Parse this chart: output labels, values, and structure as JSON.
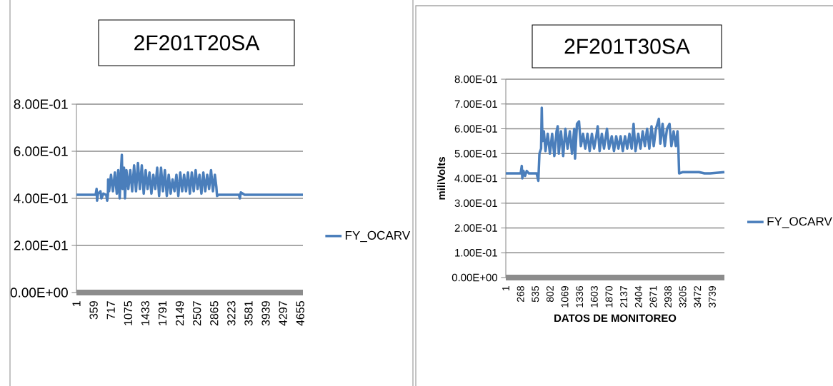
{
  "chart_data": [
    {
      "type": "line",
      "title": "2F201T20SA",
      "grid": "y",
      "legend": "right",
      "marker": "none",
      "line_style": "solid",
      "xlim": [
        1,
        4711
      ],
      "xticks": [
        1,
        359,
        717,
        1075,
        1433,
        1791,
        2149,
        2507,
        2865,
        3223,
        3581,
        3939,
        4297,
        4655
      ],
      "ylim": [
        0,
        0.8
      ],
      "yticks": [
        {
          "value": 0,
          "label": "0.00E+00"
        },
        {
          "value": 0.2,
          "label": "2.00E-01"
        },
        {
          "value": 0.4,
          "label": "4.00E-01"
        },
        {
          "value": 0.6,
          "label": "6.00E-01"
        },
        {
          "value": 0.8,
          "label": "8.00E-01"
        }
      ],
      "x": [
        1,
        200,
        400,
        420,
        430,
        450,
        500,
        520,
        560,
        620,
        640,
        655,
        660,
        680,
        720,
        760,
        800,
        840,
        870,
        900,
        930,
        945,
        960,
        990,
        1010,
        1040,
        1080,
        1120,
        1160,
        1200,
        1240,
        1280,
        1320,
        1360,
        1400,
        1440,
        1480,
        1520,
        1560,
        1600,
        1640,
        1680,
        1720,
        1760,
        1800,
        1840,
        1880,
        1920,
        1960,
        2000,
        2040,
        2080,
        2120,
        2160,
        2200,
        2240,
        2280,
        2320,
        2360,
        2400,
        2440,
        2480,
        2520,
        2560,
        2600,
        2640,
        2680,
        2720,
        2760,
        2800,
        2840,
        2880,
        2910,
        2925,
        2960,
        3100,
        3380,
        3400,
        3420,
        3500,
        4711
      ],
      "series": [
        {
          "name": "FY_OCARV",
          "color": "#4a7ebb",
          "values": [
            0.415,
            0.415,
            0.415,
            0.44,
            0.39,
            0.42,
            0.43,
            0.4,
            0.42,
            0.415,
            0.39,
            0.415,
            0.48,
            0.43,
            0.5,
            0.43,
            0.51,
            0.42,
            0.52,
            0.4,
            0.53,
            0.585,
            0.44,
            0.53,
            0.4,
            0.52,
            0.44,
            0.52,
            0.43,
            0.54,
            0.43,
            0.55,
            0.44,
            0.54,
            0.42,
            0.52,
            0.44,
            0.51,
            0.42,
            0.5,
            0.44,
            0.53,
            0.41,
            0.53,
            0.43,
            0.52,
            0.41,
            0.5,
            0.42,
            0.48,
            0.43,
            0.5,
            0.41,
            0.51,
            0.43,
            0.5,
            0.43,
            0.51,
            0.42,
            0.51,
            0.43,
            0.52,
            0.44,
            0.5,
            0.42,
            0.51,
            0.43,
            0.5,
            0.44,
            0.52,
            0.43,
            0.5,
            0.45,
            0.41,
            0.415,
            0.415,
            0.415,
            0.4,
            0.425,
            0.415,
            0.415
          ]
        }
      ]
    },
    {
      "type": "line",
      "title": "2F201T30SA",
      "xlabel": "DATOS DE MONITOREO",
      "ylabel": "miliVolts",
      "grid": "y",
      "legend": "right",
      "marker": "none",
      "line_style": "solid",
      "xlim": [
        1,
        3960
      ],
      "xticks": [
        1,
        268,
        535,
        802,
        1069,
        1336,
        1603,
        1870,
        2137,
        2404,
        2671,
        2938,
        3205,
        3472,
        3739
      ],
      "ylim": [
        0,
        0.8
      ],
      "yticks": [
        {
          "value": 0,
          "label": "0.00E+00"
        },
        {
          "value": 0.1,
          "label": "1.00E-01"
        },
        {
          "value": 0.2,
          "label": "2.00E-01"
        },
        {
          "value": 0.3,
          "label": "3.00E-01"
        },
        {
          "value": 0.4,
          "label": "4.00E-01"
        },
        {
          "value": 0.5,
          "label": "5.00E-01"
        },
        {
          "value": 0.6,
          "label": "6.00E-01"
        },
        {
          "value": 0.7,
          "label": "7.00E-01"
        },
        {
          "value": 0.8,
          "label": "8.00E-01"
        }
      ],
      "x": [
        1,
        100,
        270,
        290,
        300,
        320,
        350,
        380,
        420,
        560,
        590,
        610,
        640,
        652,
        665,
        690,
        720,
        760,
        800,
        840,
        880,
        920,
        941,
        960,
        1000,
        1040,
        1080,
        1120,
        1160,
        1200,
        1240,
        1255,
        1290,
        1327,
        1360,
        1400,
        1440,
        1480,
        1520,
        1560,
        1600,
        1640,
        1665,
        1700,
        1740,
        1780,
        1833,
        1870,
        1920,
        1960,
        2000,
        2040,
        2080,
        2120,
        2160,
        2200,
        2240,
        2280,
        2315,
        2350,
        2400,
        2440,
        2480,
        2520,
        2560,
        2600,
        2640,
        2680,
        2720,
        2773,
        2800,
        2840,
        2880,
        2920,
        2966,
        3000,
        3040,
        3080,
        3110,
        3125,
        3140,
        3200,
        3500,
        3600,
        3700,
        3960
      ],
      "series": [
        {
          "name": "FY_OCARV",
          "color": "#4a7ebb",
          "values": [
            0.42,
            0.42,
            0.42,
            0.45,
            0.4,
            0.43,
            0.41,
            0.43,
            0.42,
            0.42,
            0.39,
            0.5,
            0.52,
            0.685,
            0.55,
            0.59,
            0.51,
            0.58,
            0.5,
            0.58,
            0.49,
            0.59,
            0.61,
            0.5,
            0.59,
            0.49,
            0.6,
            0.52,
            0.59,
            0.5,
            0.6,
            0.48,
            0.62,
            0.63,
            0.53,
            0.58,
            0.52,
            0.58,
            0.51,
            0.58,
            0.52,
            0.57,
            0.61,
            0.51,
            0.58,
            0.52,
            0.6,
            0.52,
            0.57,
            0.51,
            0.57,
            0.52,
            0.57,
            0.51,
            0.57,
            0.52,
            0.58,
            0.52,
            0.62,
            0.51,
            0.58,
            0.52,
            0.59,
            0.53,
            0.6,
            0.52,
            0.61,
            0.53,
            0.6,
            0.64,
            0.54,
            0.62,
            0.53,
            0.6,
            0.62,
            0.53,
            0.59,
            0.53,
            0.59,
            0.53,
            0.42,
            0.425,
            0.425,
            0.42,
            0.42,
            0.425
          ]
        }
      ]
    }
  ]
}
